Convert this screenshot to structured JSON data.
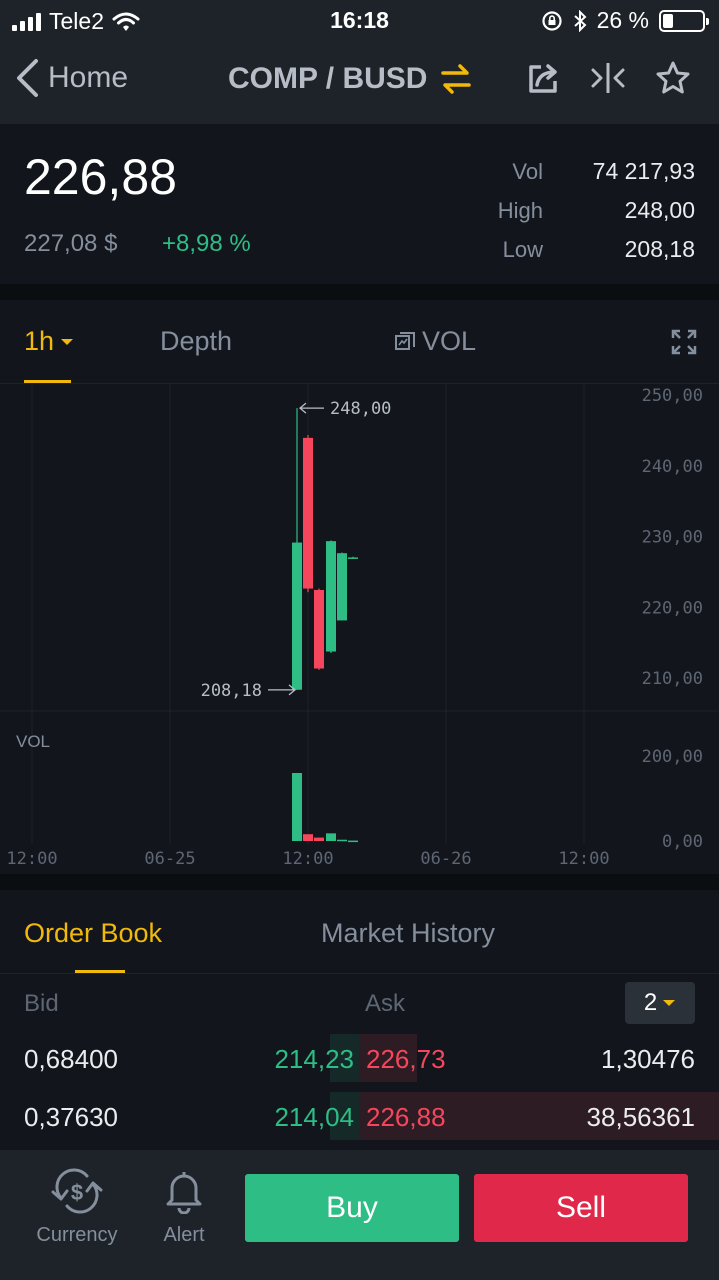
{
  "status_bar": {
    "carrier": "Tele2",
    "time": "16:18",
    "battery": "26 %",
    "battery_level": 0.26
  },
  "nav": {
    "back_label": "Home",
    "pair": "COMP / BUSD",
    "icons": [
      "back-chevron-icon",
      "swap-icon",
      "share-icon",
      "compare-icon",
      "star-icon"
    ]
  },
  "ticker": {
    "last_price": "226,88",
    "usd_price": "227,08 $",
    "change_pct": "+8,98 %",
    "vol_label": "Vol",
    "vol": "74 217,93",
    "high_label": "High",
    "high": "248,00",
    "low_label": "Low",
    "low": "208,18"
  },
  "chart_tabs": {
    "interval": "1h",
    "depth": "Depth",
    "vol": "VOL"
  },
  "chart_data": {
    "type": "candlestick",
    "y_axis_ticks": [
      "250,00",
      "240,00",
      "230,00",
      "220,00",
      "210,00"
    ],
    "ylim": [
      205,
      250
    ],
    "vol_axis_ticks": [
      "200,00",
      "0,00"
    ],
    "vol_label": "VOL",
    "x_ticks": [
      "12:00",
      "06-25",
      "12:00",
      "06-26",
      "12:00"
    ],
    "high_annotation": "248,00",
    "low_annotation": "208,18",
    "candles": [
      {
        "open": 208.2,
        "close": 229.0,
        "high": 248.0,
        "low": 208.18,
        "volume": 160
      },
      {
        "open": 243.8,
        "close": 222.5,
        "high": 244.2,
        "low": 222.0,
        "volume": 16
      },
      {
        "open": 222.3,
        "close": 211.2,
        "high": 222.5,
        "low": 211.0,
        "volume": 8
      },
      {
        "open": 213.6,
        "close": 229.2,
        "high": 229.3,
        "low": 213.4,
        "volume": 18
      },
      {
        "open": 218.0,
        "close": 227.5,
        "high": 227.6,
        "low": 218.0,
        "volume": 3
      },
      {
        "open": 226.8,
        "close": 226.9,
        "high": 227.0,
        "low": 226.7,
        "volume": 1
      }
    ],
    "colors": {
      "up": "#2ebd85",
      "down": "#f6465d"
    }
  },
  "order_book": {
    "tabs": [
      "Order Book",
      "Market History"
    ],
    "bid_label": "Bid",
    "ask_label": "Ask",
    "depth_value": "2",
    "rows": [
      {
        "bid_qty": "0,68400",
        "bid_price": "214,23",
        "ask_price": "226,73",
        "ask_qty": "1,30476",
        "bid_depth": 0.08,
        "ask_depth": 0.16
      },
      {
        "bid_qty": "0,37630",
        "bid_price": "214,04",
        "ask_price": "226,88",
        "ask_qty": "38,56361",
        "bid_depth": 0.08,
        "ask_depth": 1.0
      }
    ]
  },
  "bottom": {
    "currency": "Currency",
    "alert": "Alert",
    "buy": "Buy",
    "sell": "Sell"
  }
}
